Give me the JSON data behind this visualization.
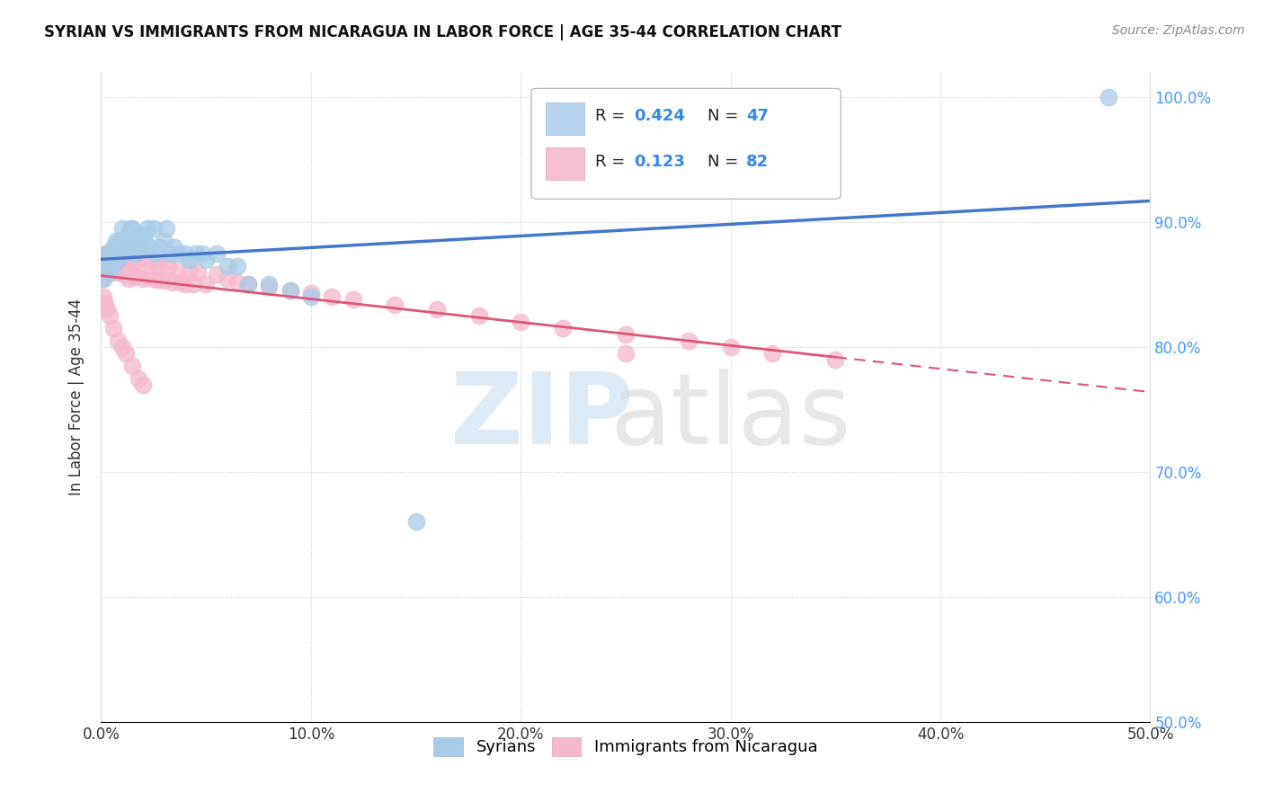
{
  "title": "SYRIAN VS IMMIGRANTS FROM NICARAGUA IN LABOR FORCE | AGE 35-44 CORRELATION CHART",
  "source": "Source: ZipAtlas.com",
  "ylabel": "In Labor Force | Age 35-44",
  "xlim": [
    0.0,
    0.5
  ],
  "ylim": [
    0.5,
    1.02
  ],
  "xtick_vals": [
    0.0,
    0.1,
    0.2,
    0.3,
    0.4,
    0.5
  ],
  "ytick_vals": [
    0.5,
    0.6,
    0.7,
    0.8,
    0.9,
    1.0
  ],
  "blue_color": "#a8cce8",
  "pink_color": "#f5b8cc",
  "blue_line_color": "#4477cc",
  "pink_line_color": "#dd5577",
  "watermark_zip": "ZIP",
  "watermark_atlas": "atlas",
  "syrians_x": [
    0.001,
    0.001,
    0.003,
    0.004,
    0.005,
    0.006,
    0.007,
    0.007,
    0.008,
    0.009,
    0.01,
    0.01,
    0.011,
    0.012,
    0.013,
    0.014,
    0.015,
    0.015,
    0.016,
    0.017,
    0.018,
    0.02,
    0.021,
    0.022,
    0.023,
    0.025,
    0.026,
    0.028,
    0.03,
    0.031,
    0.033,
    0.035,
    0.037,
    0.04,
    0.042,
    0.045,
    0.048,
    0.05,
    0.055,
    0.06,
    0.065,
    0.07,
    0.08,
    0.09,
    0.1,
    0.15,
    0.48
  ],
  "syrians_y": [
    0.855,
    0.87,
    0.875,
    0.86,
    0.865,
    0.88,
    0.875,
    0.885,
    0.87,
    0.885,
    0.88,
    0.895,
    0.875,
    0.885,
    0.89,
    0.895,
    0.88,
    0.895,
    0.875,
    0.885,
    0.88,
    0.89,
    0.885,
    0.895,
    0.88,
    0.895,
    0.875,
    0.88,
    0.885,
    0.895,
    0.875,
    0.88,
    0.875,
    0.875,
    0.87,
    0.875,
    0.875,
    0.87,
    0.875,
    0.865,
    0.865,
    0.85,
    0.85,
    0.845,
    0.84,
    0.66,
    1.0
  ],
  "nicaragua_x": [
    0.001,
    0.001,
    0.002,
    0.002,
    0.003,
    0.003,
    0.004,
    0.004,
    0.005,
    0.005,
    0.006,
    0.006,
    0.007,
    0.007,
    0.008,
    0.008,
    0.009,
    0.009,
    0.01,
    0.01,
    0.011,
    0.011,
    0.012,
    0.012,
    0.013,
    0.013,
    0.014,
    0.015,
    0.015,
    0.016,
    0.017,
    0.018,
    0.019,
    0.02,
    0.021,
    0.022,
    0.023,
    0.025,
    0.026,
    0.027,
    0.028,
    0.03,
    0.032,
    0.034,
    0.036,
    0.038,
    0.04,
    0.042,
    0.044,
    0.046,
    0.05,
    0.055,
    0.06,
    0.065,
    0.07,
    0.08,
    0.09,
    0.1,
    0.11,
    0.12,
    0.14,
    0.16,
    0.18,
    0.2,
    0.22,
    0.25,
    0.28,
    0.3,
    0.32,
    0.35,
    0.001,
    0.002,
    0.003,
    0.004,
    0.006,
    0.008,
    0.01,
    0.012,
    0.015,
    0.018,
    0.02,
    0.25
  ],
  "nicaragua_y": [
    0.87,
    0.855,
    0.865,
    0.875,
    0.86,
    0.875,
    0.865,
    0.875,
    0.86,
    0.875,
    0.865,
    0.875,
    0.865,
    0.878,
    0.86,
    0.875,
    0.862,
    0.876,
    0.86,
    0.875,
    0.858,
    0.872,
    0.858,
    0.872,
    0.855,
    0.87,
    0.86,
    0.858,
    0.872,
    0.856,
    0.87,
    0.858,
    0.872,
    0.855,
    0.87,
    0.856,
    0.87,
    0.855,
    0.868,
    0.854,
    0.865,
    0.853,
    0.864,
    0.852,
    0.862,
    0.852,
    0.85,
    0.862,
    0.85,
    0.86,
    0.85,
    0.858,
    0.855,
    0.852,
    0.85,
    0.848,
    0.845,
    0.843,
    0.84,
    0.838,
    0.834,
    0.83,
    0.825,
    0.82,
    0.815,
    0.81,
    0.805,
    0.8,
    0.795,
    0.79,
    0.84,
    0.835,
    0.83,
    0.825,
    0.815,
    0.805,
    0.8,
    0.795,
    0.785,
    0.775,
    0.77,
    0.795
  ]
}
